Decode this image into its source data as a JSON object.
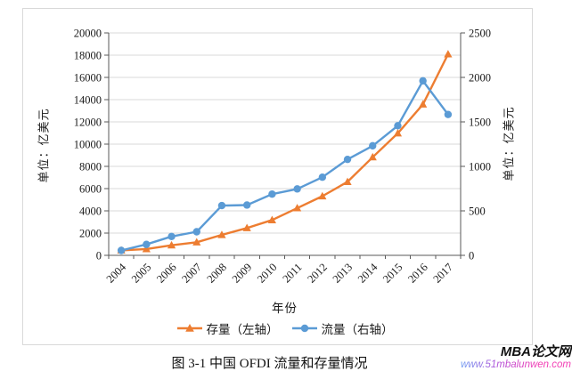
{
  "chart_data": {
    "type": "line",
    "title": "图 3-1  中国 OFDI 流量和存量情况",
    "xlabel": "年份",
    "categories": [
      "2004",
      "2005",
      "2006",
      "2007",
      "2008",
      "2009",
      "2010",
      "2011",
      "2012",
      "2013",
      "2014",
      "2015",
      "2016",
      "2017"
    ],
    "left_axis": {
      "label": "单位：亿美元",
      "min": 0,
      "max": 20000,
      "step": 2000
    },
    "right_axis": {
      "label": "单位：亿美元",
      "min": 0,
      "max": 2500,
      "step": 500
    },
    "grid": true,
    "legend_position": "bottom",
    "colors": {
      "grid": "#d9d9d9",
      "frame": "#d9d9d9",
      "axis": "#595959",
      "tick_text": "#1a1a1a"
    },
    "series": [
      {
        "name": "存量（左轴）",
        "axis": "left",
        "marker": "triangle",
        "color": "#ED7D31",
        "values": [
          448.0,
          572.0,
          906.3,
          1179.1,
          1839.7,
          2457.5,
          3172.1,
          4247.8,
          5319.4,
          6604.8,
          8826.4,
          10978.6,
          13573.9,
          18090.4
        ]
      },
      {
        "name": "流量（右轴）",
        "axis": "right",
        "marker": "circle",
        "color": "#5B9BD5",
        "values": [
          55.0,
          122.6,
          211.6,
          265.1,
          559.1,
          565.3,
          688.1,
          746.5,
          878.0,
          1078.4,
          1231.2,
          1456.7,
          1961.5,
          1582.9
        ]
      }
    ]
  },
  "caption": "图 3-1  中国 OFDI 流量和存量情况",
  "watermark": {
    "title": "MBA论文网",
    "url": "www.51mbalunwen.com"
  }
}
